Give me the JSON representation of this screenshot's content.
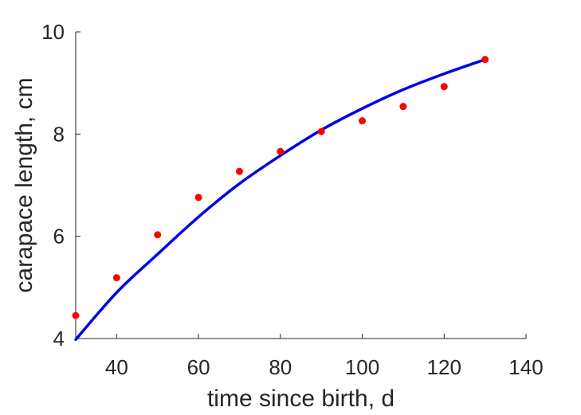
{
  "chart_data": {
    "type": "scatter",
    "title": "",
    "xlabel": "time since birth, d",
    "ylabel": "carapace length, cm",
    "xlim": [
      30,
      140
    ],
    "ylim": [
      4,
      10
    ],
    "xticks": [
      40,
      60,
      80,
      100,
      120,
      140
    ],
    "yticks": [
      4,
      6,
      8,
      10
    ],
    "grid": false,
    "legend": "none",
    "series": [
      {
        "kind": "markers",
        "color": "#ff0000",
        "x": [
          30,
          40,
          50,
          60,
          70,
          80,
          90,
          100,
          110,
          120,
          130
        ],
        "y": [
          4.45,
          5.19,
          6.03,
          6.76,
          7.27,
          7.66,
          8.05,
          8.26,
          8.54,
          8.93,
          9.46
        ]
      },
      {
        "kind": "fitted-line",
        "color": "#0000e6",
        "x": [
          30,
          40,
          50,
          60,
          70,
          80,
          90,
          100,
          110,
          120,
          130
        ],
        "y": [
          3.98,
          4.9,
          5.65,
          6.38,
          7.03,
          7.58,
          8.08,
          8.5,
          8.87,
          9.18,
          9.46
        ]
      }
    ]
  }
}
